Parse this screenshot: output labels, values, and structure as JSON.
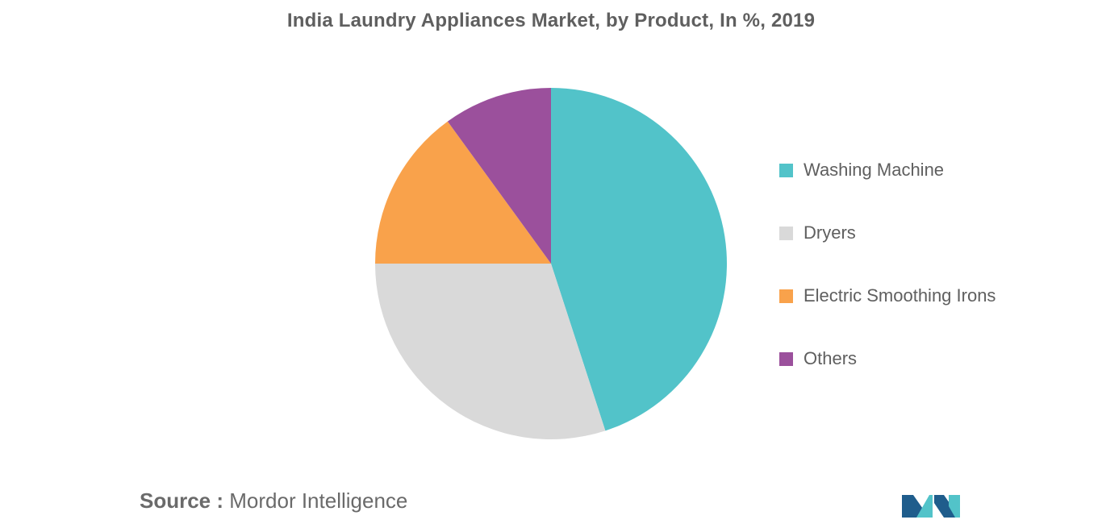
{
  "chart_data": {
    "type": "pie",
    "title": "India Laundry Appliances Market, by Product, In %, 2019",
    "slices": [
      {
        "label": "Washing Machine",
        "value": 45,
        "color": "#52c3c9"
      },
      {
        "label": "Dryers",
        "value": 30,
        "color": "#d9d9d9"
      },
      {
        "label": "Electric Smoothing Irons",
        "value": 15,
        "color": "#f9a24b"
      },
      {
        "label": "Others",
        "value": 10,
        "color": "#9b509c"
      }
    ],
    "legend_position": "right",
    "start_angle": "12 o'clock",
    "direction": "clockwise"
  },
  "source": {
    "prefix": "Source :",
    "text": " Mordor Intelligence"
  },
  "logo": {
    "icon": "mordor-intelligence-logo",
    "colors": [
      "#1f5d8c",
      "#52c3c9"
    ]
  }
}
